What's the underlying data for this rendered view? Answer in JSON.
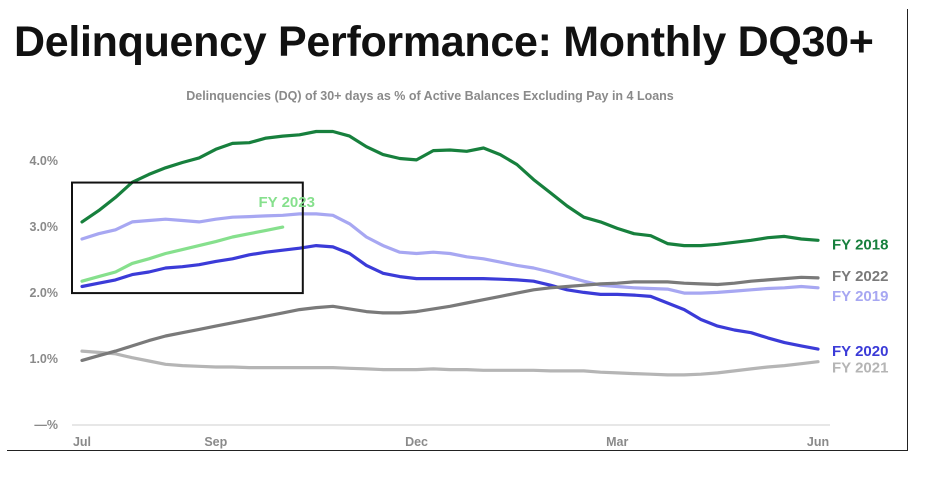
{
  "title": "Delinquency Performance: Monthly DQ30+",
  "chart_data": {
    "type": "line",
    "subtitle": "Delinquencies (DQ) of 30+ days as % of Active Balances Excluding Pay in 4 Loans",
    "xlabel": "",
    "ylabel": "",
    "x_ticks": [
      "Jul",
      "Sep",
      "Dec",
      "Mar",
      "Jun"
    ],
    "x_tick_positions": [
      0,
      2,
      5,
      8,
      11
    ],
    "y_ticks": [
      "—%",
      "1.0%",
      "2.0%",
      "3.0%",
      "4.0%"
    ],
    "y_tick_values": [
      0,
      1,
      2,
      3,
      4
    ],
    "xlim": [
      0,
      11
    ],
    "ylim": [
      0,
      4.7
    ],
    "grid": false,
    "legend": "labels at line ends (right)",
    "highlight_box": {
      "label": "FY 2023",
      "x_range": [
        0,
        3.3
      ],
      "y_range": [
        2.0,
        3.6
      ]
    },
    "series": [
      {
        "name": "FY 2018",
        "color": "#17803d",
        "x": [
          0,
          0.25,
          0.5,
          0.75,
          1,
          1.25,
          1.5,
          1.75,
          2,
          2.25,
          2.5,
          2.75,
          3,
          3.25,
          3.5,
          3.75,
          4,
          4.25,
          4.5,
          4.75,
          5,
          5.25,
          5.5,
          5.75,
          6,
          6.25,
          6.5,
          6.75,
          7,
          7.25,
          7.5,
          7.75,
          8,
          8.25,
          8.5,
          8.75,
          9,
          9.25,
          9.5,
          9.75,
          10,
          10.25,
          10.5,
          10.75,
          11
        ],
        "y": [
          3.08,
          3.25,
          3.45,
          3.68,
          3.8,
          3.9,
          3.98,
          4.05,
          4.18,
          4.27,
          4.28,
          4.35,
          4.38,
          4.4,
          4.45,
          4.45,
          4.38,
          4.22,
          4.1,
          4.04,
          4.02,
          4.16,
          4.17,
          4.15,
          4.2,
          4.1,
          3.95,
          3.72,
          3.52,
          3.32,
          3.15,
          3.08,
          2.98,
          2.9,
          2.87,
          2.75,
          2.72,
          2.72,
          2.74,
          2.77,
          2.8,
          2.84,
          2.86,
          2.82,
          2.8
        ]
      },
      {
        "name": "FY 2019",
        "color": "#a7a7f2",
        "x": [
          0,
          0.25,
          0.5,
          0.75,
          1,
          1.25,
          1.5,
          1.75,
          2,
          2.25,
          2.5,
          2.75,
          3,
          3.25,
          3.5,
          3.75,
          4,
          4.25,
          4.5,
          4.75,
          5,
          5.25,
          5.5,
          5.75,
          6,
          6.25,
          6.5,
          6.75,
          7,
          7.25,
          7.5,
          7.75,
          8,
          8.25,
          8.5,
          8.75,
          9,
          9.25,
          9.5,
          9.75,
          10,
          10.25,
          10.5,
          10.75,
          11
        ],
        "y": [
          2.82,
          2.9,
          2.96,
          3.08,
          3.1,
          3.12,
          3.1,
          3.08,
          3.12,
          3.15,
          3.16,
          3.17,
          3.18,
          3.2,
          3.2,
          3.18,
          3.05,
          2.85,
          2.72,
          2.62,
          2.6,
          2.62,
          2.6,
          2.55,
          2.52,
          2.47,
          2.42,
          2.38,
          2.32,
          2.25,
          2.18,
          2.12,
          2.1,
          2.08,
          2.07,
          2.06,
          2.0,
          2.0,
          2.01,
          2.03,
          2.05,
          2.07,
          2.08,
          2.1,
          2.08
        ]
      },
      {
        "name": "FY 2020",
        "color": "#3b3bd8",
        "x": [
          0,
          0.25,
          0.5,
          0.75,
          1,
          1.25,
          1.5,
          1.75,
          2,
          2.25,
          2.5,
          2.75,
          3,
          3.25,
          3.5,
          3.75,
          4,
          4.25,
          4.5,
          4.75,
          5,
          5.25,
          5.5,
          5.75,
          6,
          6.25,
          6.5,
          6.75,
          7,
          7.25,
          7.5,
          7.75,
          8,
          8.25,
          8.5,
          8.75,
          9,
          9.25,
          9.5,
          9.75,
          10,
          10.25,
          10.5,
          10.75,
          11
        ],
        "y": [
          2.1,
          2.15,
          2.2,
          2.28,
          2.32,
          2.38,
          2.4,
          2.43,
          2.48,
          2.52,
          2.58,
          2.62,
          2.65,
          2.68,
          2.72,
          2.7,
          2.6,
          2.42,
          2.3,
          2.25,
          2.22,
          2.22,
          2.22,
          2.22,
          2.22,
          2.21,
          2.2,
          2.18,
          2.12,
          2.05,
          2.01,
          1.98,
          1.98,
          1.97,
          1.95,
          1.85,
          1.75,
          1.6,
          1.5,
          1.44,
          1.4,
          1.32,
          1.25,
          1.2,
          1.15
        ]
      },
      {
        "name": "FY 2021",
        "color": "#b5b5b5",
        "x": [
          0,
          0.25,
          0.5,
          0.75,
          1,
          1.25,
          1.5,
          1.75,
          2,
          2.25,
          2.5,
          2.75,
          3,
          3.25,
          3.5,
          3.75,
          4,
          4.25,
          4.5,
          4.75,
          5,
          5.25,
          5.5,
          5.75,
          6,
          6.25,
          6.5,
          6.75,
          7,
          7.25,
          7.5,
          7.75,
          8,
          8.25,
          8.5,
          8.75,
          9,
          9.25,
          9.5,
          9.75,
          10,
          10.25,
          10.5,
          10.75,
          11
        ],
        "y": [
          1.12,
          1.1,
          1.08,
          1.02,
          0.97,
          0.92,
          0.9,
          0.89,
          0.88,
          0.88,
          0.87,
          0.87,
          0.87,
          0.87,
          0.87,
          0.87,
          0.86,
          0.85,
          0.84,
          0.84,
          0.84,
          0.85,
          0.84,
          0.84,
          0.83,
          0.83,
          0.83,
          0.83,
          0.82,
          0.82,
          0.82,
          0.8,
          0.79,
          0.78,
          0.77,
          0.76,
          0.76,
          0.77,
          0.79,
          0.82,
          0.85,
          0.88,
          0.9,
          0.93,
          0.96
        ]
      },
      {
        "name": "FY 2022",
        "color": "#7a7a7a",
        "x": [
          0,
          0.25,
          0.5,
          0.75,
          1,
          1.25,
          1.5,
          1.75,
          2,
          2.25,
          2.5,
          2.75,
          3,
          3.25,
          3.5,
          3.75,
          4,
          4.25,
          4.5,
          4.75,
          5,
          5.25,
          5.5,
          5.75,
          6,
          6.25,
          6.5,
          6.75,
          7,
          7.25,
          7.5,
          7.75,
          8,
          8.25,
          8.5,
          8.75,
          9,
          9.25,
          9.5,
          9.75,
          10,
          10.25,
          10.5,
          10.75,
          11
        ],
        "y": [
          0.98,
          1.05,
          1.12,
          1.2,
          1.28,
          1.35,
          1.4,
          1.45,
          1.5,
          1.55,
          1.6,
          1.65,
          1.7,
          1.75,
          1.78,
          1.8,
          1.76,
          1.72,
          1.7,
          1.7,
          1.72,
          1.76,
          1.8,
          1.85,
          1.9,
          1.95,
          2.0,
          2.05,
          2.08,
          2.1,
          2.12,
          2.14,
          2.15,
          2.17,
          2.17,
          2.17,
          2.15,
          2.14,
          2.13,
          2.15,
          2.18,
          2.2,
          2.22,
          2.24,
          2.23
        ]
      },
      {
        "name": "FY 2023",
        "color": "#86e08d",
        "x": [
          0,
          0.25,
          0.5,
          0.75,
          1,
          1.25,
          1.5,
          1.75,
          2,
          2.25,
          2.5,
          2.75,
          3
        ],
        "y": [
          2.18,
          2.25,
          2.32,
          2.45,
          2.52,
          2.6,
          2.66,
          2.72,
          2.78,
          2.85,
          2.9,
          2.95,
          3.0
        ]
      }
    ]
  }
}
